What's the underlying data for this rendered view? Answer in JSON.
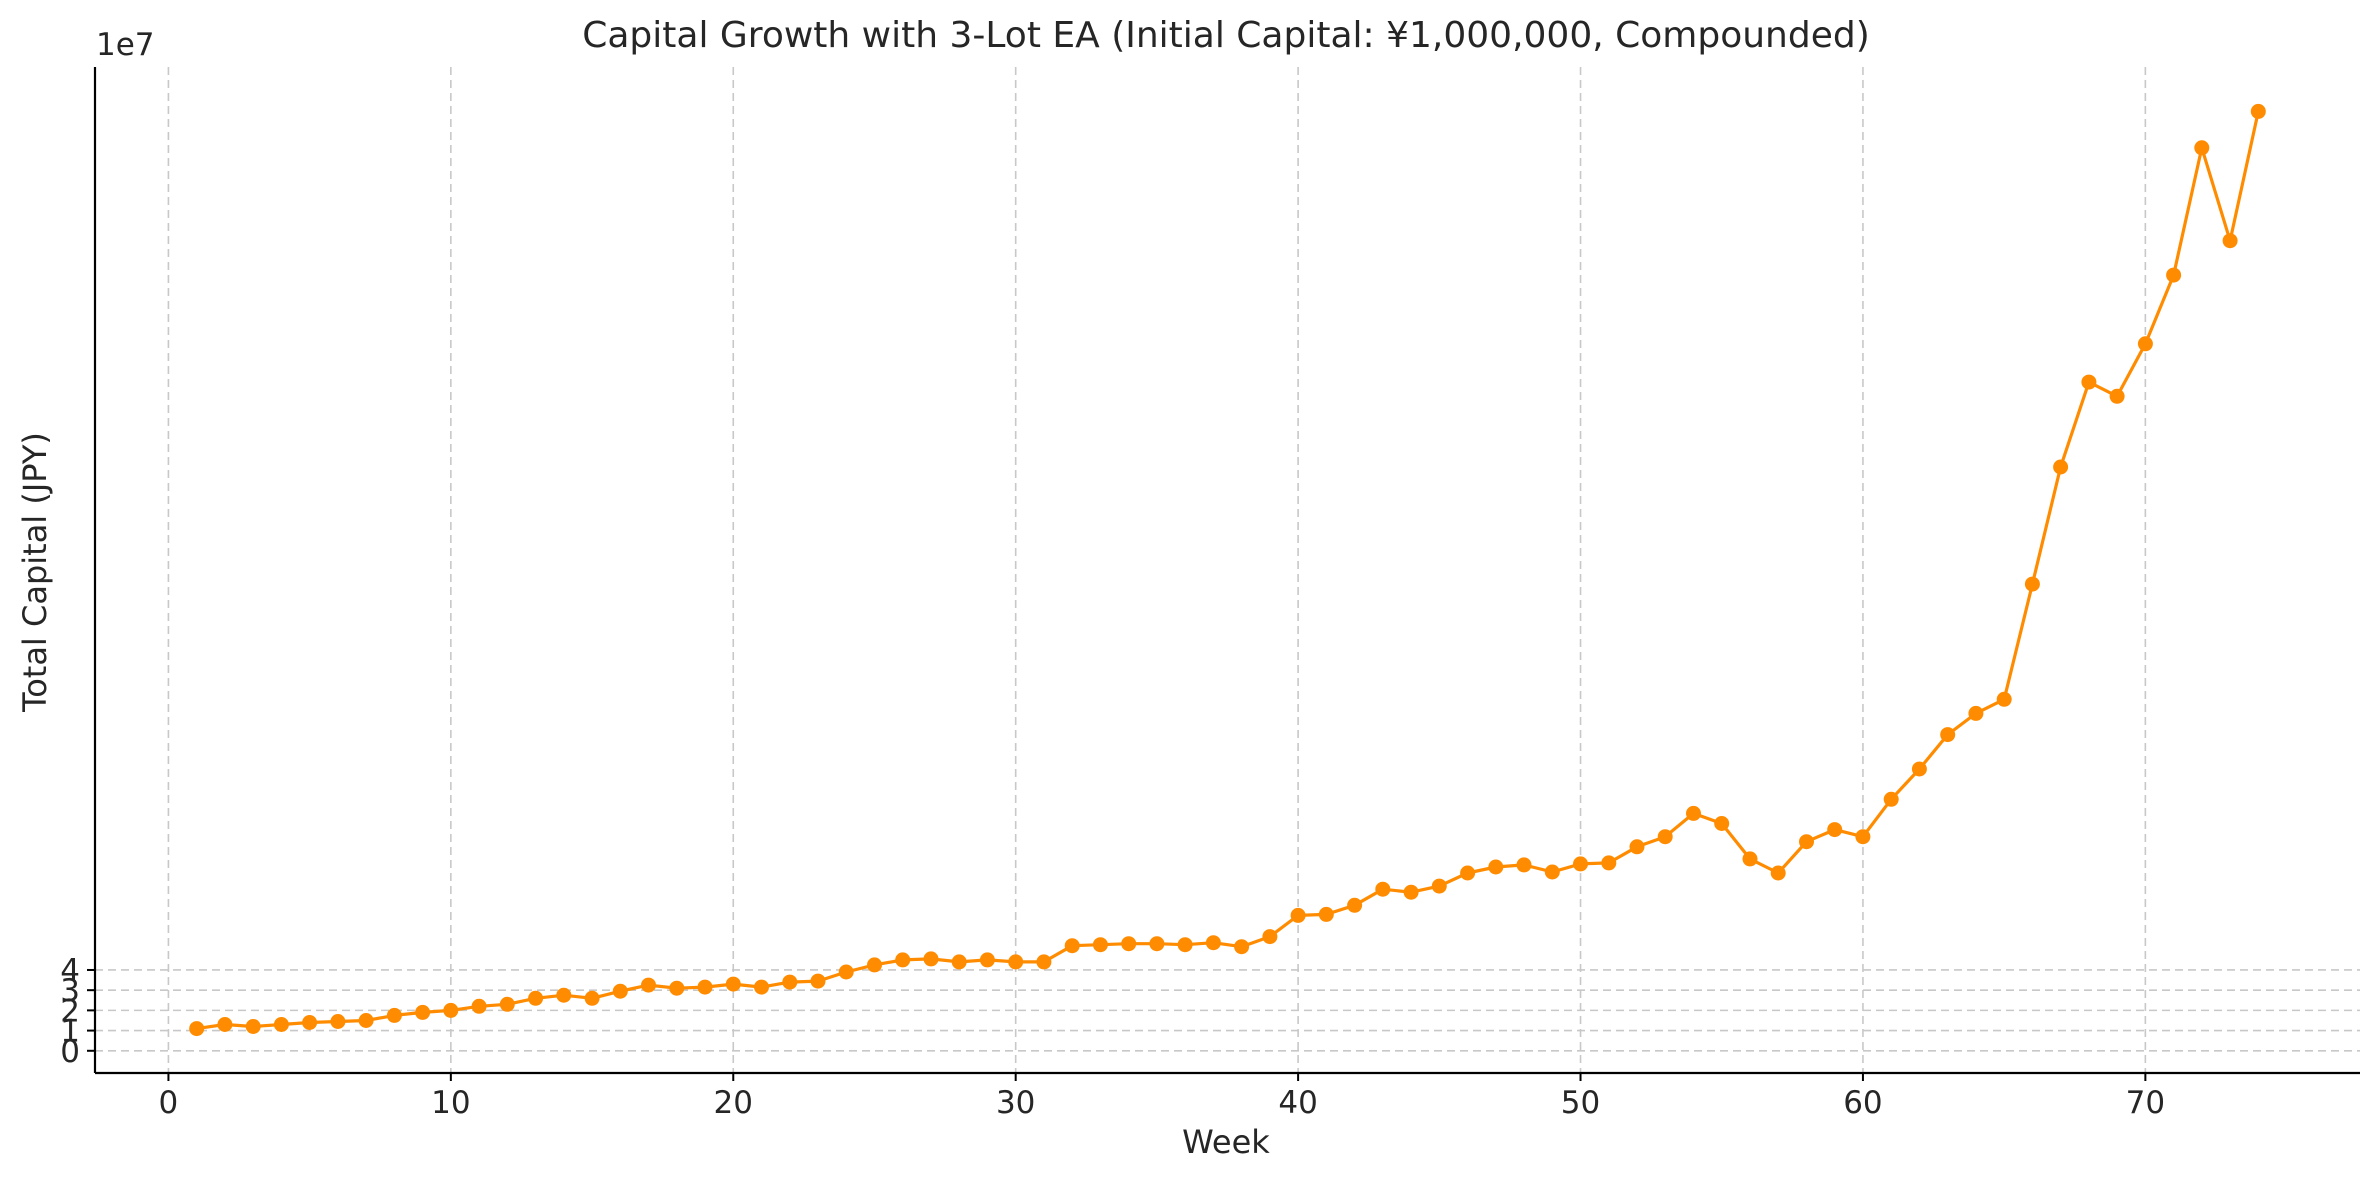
{
  "chart_data": {
    "type": "line",
    "title": "Capital Growth with 3-Lot EA (Initial Capital: ¥1,000,000, Compounded)",
    "xlabel": "Week",
    "ylabel": "Total Capital (JPY)",
    "y_offset_label": "1e7",
    "xlim": [
      -2.6,
      77.6
    ],
    "ylim": [
      -1.1,
      48.7
    ],
    "x_ticks": [
      0,
      10,
      20,
      30,
      40,
      50,
      60,
      70
    ],
    "y_ticks": [
      0,
      1,
      2,
      3,
      4
    ],
    "grid": true,
    "color": "#ff8c00",
    "series": [
      {
        "x": [
          1,
          2,
          3,
          4,
          5,
          6,
          7,
          8,
          9,
          10,
          11,
          12,
          13,
          14,
          15,
          16,
          17,
          18,
          19,
          20,
          21,
          22,
          23,
          24,
          25,
          26,
          27,
          28,
          29,
          30,
          31,
          32,
          33,
          34,
          35,
          36,
          37,
          38,
          39,
          40,
          41,
          42,
          43,
          44,
          45,
          46,
          47,
          48,
          49,
          50,
          51,
          52,
          53,
          54,
          55,
          56,
          57,
          58,
          59,
          60,
          61,
          62,
          63,
          64,
          65,
          66,
          67,
          68,
          69,
          70,
          71,
          72,
          73,
          74
        ],
        "values": [
          1.1,
          1.3,
          1.2,
          1.3,
          1.4,
          1.45,
          1.5,
          1.75,
          1.9,
          2.0,
          2.2,
          2.3,
          2.6,
          2.75,
          2.6,
          2.95,
          3.25,
          3.1,
          3.15,
          3.3,
          3.15,
          3.4,
          3.45,
          3.9,
          4.25,
          4.5,
          4.55,
          4.4,
          4.5,
          4.4,
          4.4,
          5.2,
          5.25,
          5.3,
          5.3,
          5.25,
          5.35,
          5.15,
          5.65,
          6.7,
          6.75,
          7.2,
          8.0,
          7.85,
          8.15,
          8.8,
          9.1,
          9.2,
          8.85,
          9.25,
          9.3,
          10.1,
          10.6,
          11.75,
          11.25,
          9.5,
          8.8,
          10.35,
          10.95,
          10.6,
          12.45,
          13.95,
          15.65,
          16.7,
          17.4,
          23.1,
          28.9,
          33.1,
          32.4,
          35.0,
          38.4,
          44.7,
          40.1,
          46.5
        ]
      }
    ]
  }
}
